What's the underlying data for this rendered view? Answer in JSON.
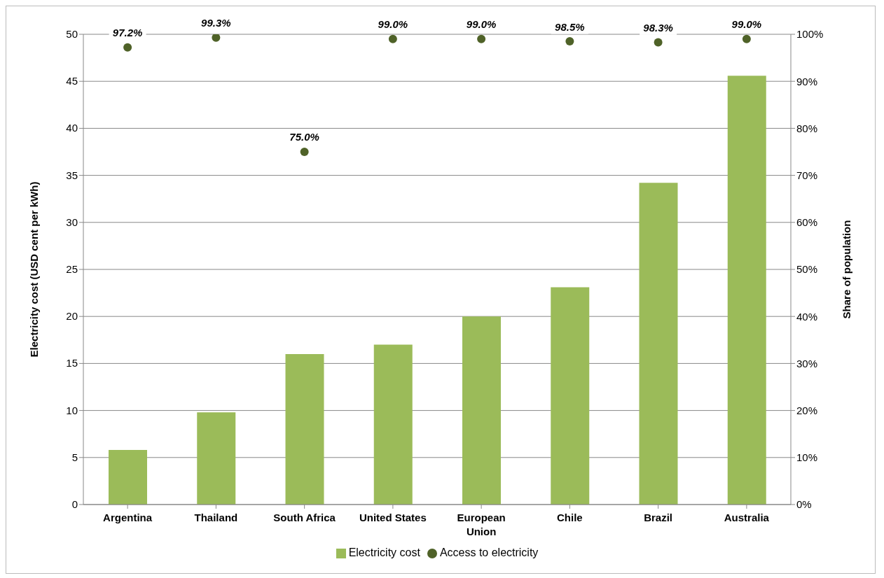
{
  "chart_data": {
    "type": "bar",
    "categories": [
      "Argentina",
      "Thailand",
      "South Africa",
      "United States",
      "European Union",
      "Chile",
      "Brazil",
      "Australia"
    ],
    "series": [
      {
        "name": "Electricity cost",
        "color": "#9bbb59",
        "values": [
          5.8,
          9.8,
          16.0,
          17.0,
          20.0,
          23.1,
          34.2,
          45.6
        ]
      },
      {
        "name": "Access to electricity",
        "type": "scatter",
        "axis": "y2",
        "color": "#4f6228",
        "marker": "circle",
        "values": [
          97.2,
          99.3,
          75.0,
          99.0,
          99.0,
          98.5,
          98.3,
          99.0
        ],
        "value_labels": [
          "97.2%",
          "99.3%",
          "75.0%",
          "99.0%",
          "99.0%",
          "98.5%",
          "98.3%",
          "99.0%"
        ]
      }
    ],
    "ylabel": "Electricity cost (USD cent per kWh)",
    "y2label": "Share of population",
    "ylim": [
      0,
      50
    ],
    "yticks": [
      0,
      5,
      10,
      15,
      20,
      25,
      30,
      35,
      40,
      45,
      50
    ],
    "y2lim": [
      0,
      100
    ],
    "y2ticks": [
      {
        "value": 0,
        "label": "0%"
      },
      {
        "value": 10,
        "label": "10%"
      },
      {
        "value": 20,
        "label": "20%"
      },
      {
        "value": 30,
        "label": "30%"
      },
      {
        "value": 40,
        "label": "40%"
      },
      {
        "value": 50,
        "label": "50%"
      },
      {
        "value": 60,
        "label": "60%"
      },
      {
        "value": 70,
        "label": "70%"
      },
      {
        "value": 80,
        "label": "80%"
      },
      {
        "value": 90,
        "label": "90%"
      },
      {
        "value": 100,
        "label": "100%"
      }
    ],
    "grid": "y",
    "legend": "bottom"
  }
}
